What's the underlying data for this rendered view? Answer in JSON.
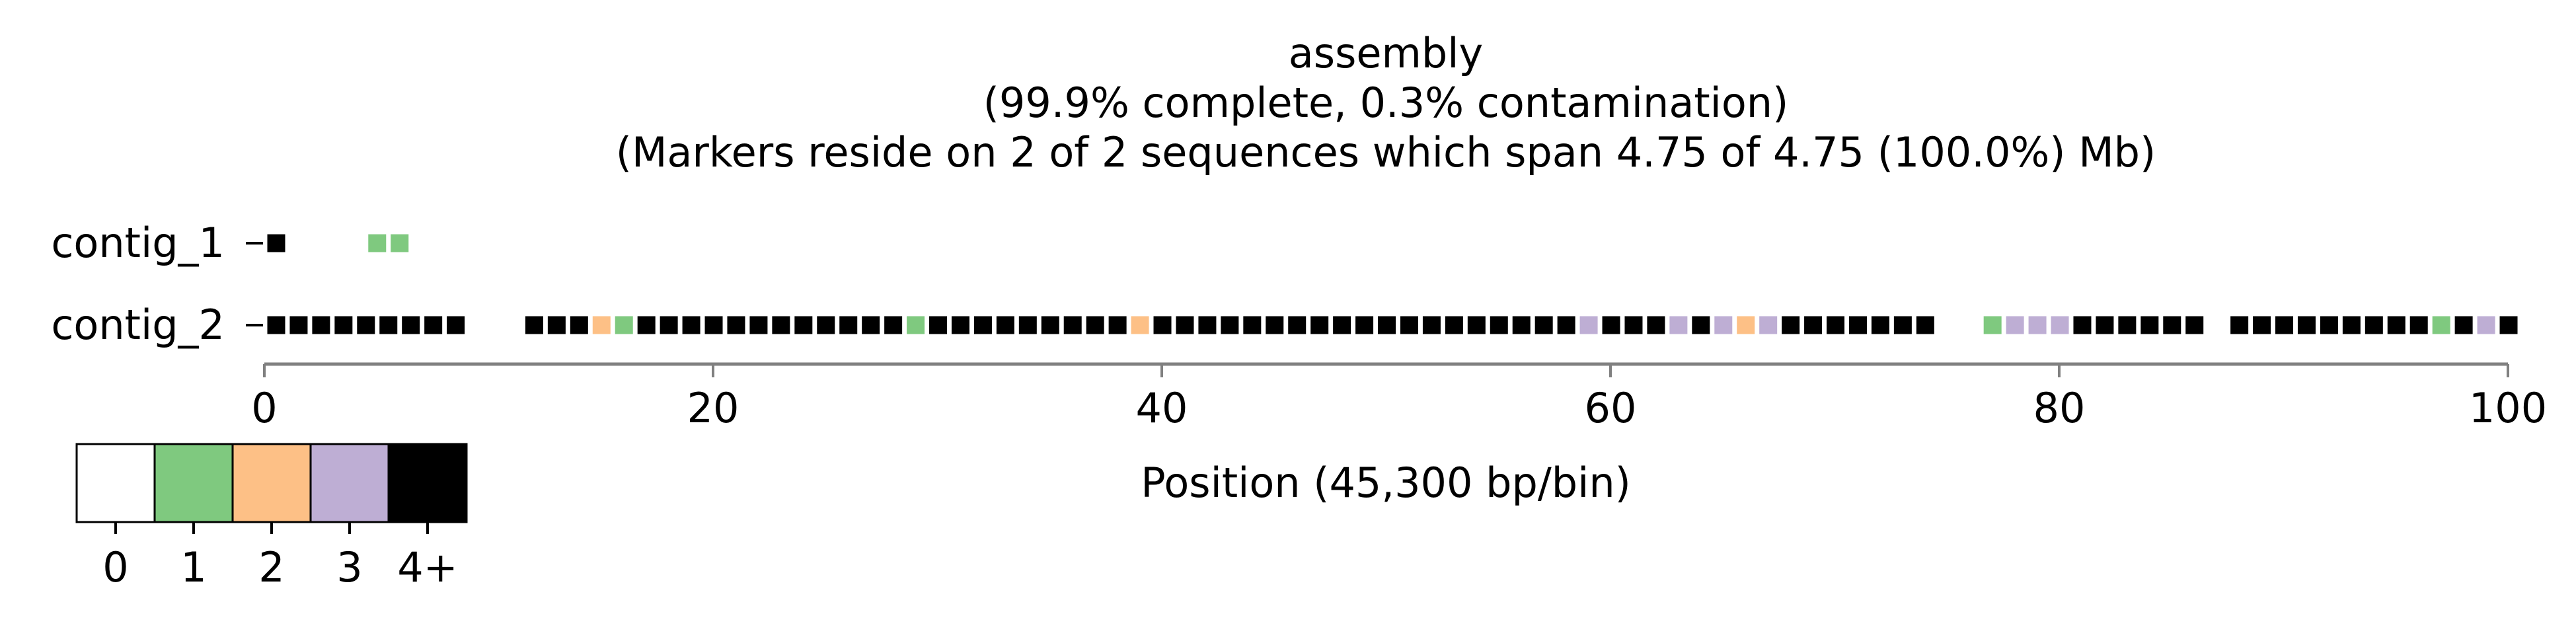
{
  "chart_data": {
    "type": "heatmap",
    "title": "assembly",
    "subtitle1": "(99.9% complete, 0.3% contamination)",
    "subtitle2": "(Markers reside on 2 of 2 sequences which span 4.75 of 4.75 (100.0%) Mb)",
    "xlabel": "Position (45,300 bp/bin)",
    "xlim": [
      0,
      100
    ],
    "xticks": [
      0,
      20,
      40,
      60,
      80,
      100
    ],
    "rows": [
      {
        "name": "contig_1",
        "cells": [
          [
            0,
            4
          ],
          [
            4.5,
            1
          ],
          [
            5.5,
            1
          ]
        ]
      },
      {
        "name": "contig_2",
        "cells": [
          [
            0,
            4
          ],
          [
            1,
            4
          ],
          [
            2,
            4
          ],
          [
            3,
            4
          ],
          [
            4,
            4
          ],
          [
            5,
            4
          ],
          [
            6,
            4
          ],
          [
            7,
            4
          ],
          [
            8,
            4
          ],
          [
            11.5,
            4
          ],
          [
            12.5,
            4
          ],
          [
            13.5,
            4
          ],
          [
            14.5,
            2
          ],
          [
            15.5,
            1
          ],
          [
            16.5,
            4
          ],
          [
            17.5,
            4
          ],
          [
            18.5,
            4
          ],
          [
            19.5,
            4
          ],
          [
            20.5,
            4
          ],
          [
            21.5,
            4
          ],
          [
            22.5,
            4
          ],
          [
            23.5,
            4
          ],
          [
            24.5,
            4
          ],
          [
            25.5,
            4
          ],
          [
            26.5,
            4
          ],
          [
            27.5,
            4
          ],
          [
            28.5,
            1
          ],
          [
            29.5,
            4
          ],
          [
            30.5,
            4
          ],
          [
            31.5,
            4
          ],
          [
            32.5,
            4
          ],
          [
            33.5,
            4
          ],
          [
            34.5,
            4
          ],
          [
            35.5,
            4
          ],
          [
            36.5,
            4
          ],
          [
            37.5,
            4
          ],
          [
            38.5,
            2
          ],
          [
            39.5,
            4
          ],
          [
            40.5,
            4
          ],
          [
            41.5,
            4
          ],
          [
            42.5,
            4
          ],
          [
            43.5,
            4
          ],
          [
            44.5,
            4
          ],
          [
            45.5,
            4
          ],
          [
            46.5,
            4
          ],
          [
            47.5,
            4
          ],
          [
            48.5,
            4
          ],
          [
            49.5,
            4
          ],
          [
            50.5,
            4
          ],
          [
            51.5,
            4
          ],
          [
            52.5,
            4
          ],
          [
            53.5,
            4
          ],
          [
            54.5,
            4
          ],
          [
            55.5,
            4
          ],
          [
            56.5,
            4
          ],
          [
            57.5,
            4
          ],
          [
            58.5,
            3
          ],
          [
            59.5,
            4
          ],
          [
            60.5,
            4
          ],
          [
            61.5,
            4
          ],
          [
            62.5,
            3
          ],
          [
            63.5,
            4
          ],
          [
            64.5,
            3
          ],
          [
            65.5,
            2
          ],
          [
            66.5,
            3
          ],
          [
            67.5,
            4
          ],
          [
            68.5,
            4
          ],
          [
            69.5,
            4
          ],
          [
            70.5,
            4
          ],
          [
            71.5,
            4
          ],
          [
            72.5,
            4
          ],
          [
            73.5,
            4
          ],
          [
            76.5,
            1
          ],
          [
            77.5,
            3
          ],
          [
            78.5,
            3
          ],
          [
            79.5,
            3
          ],
          [
            80.5,
            4
          ],
          [
            81.5,
            4
          ],
          [
            82.5,
            4
          ],
          [
            83.5,
            4
          ],
          [
            84.5,
            4
          ],
          [
            85.5,
            4
          ],
          [
            87.5,
            4
          ],
          [
            88.5,
            4
          ],
          [
            89.5,
            4
          ],
          [
            90.5,
            4
          ],
          [
            91.5,
            4
          ],
          [
            92.5,
            4
          ],
          [
            93.5,
            4
          ],
          [
            94.5,
            4
          ],
          [
            95.5,
            4
          ],
          [
            96.5,
            1
          ],
          [
            97.5,
            4
          ],
          [
            98.5,
            3
          ],
          [
            99.5,
            4
          ]
        ]
      }
    ],
    "colorbar": {
      "labels": [
        "0",
        "1",
        "2",
        "3",
        "4+"
      ],
      "colors": [
        "#ffffff",
        "#7fc97f",
        "#fdc086",
        "#beaed4",
        "#000000"
      ]
    },
    "grid": false,
    "legend_position": "bottom-left"
  }
}
